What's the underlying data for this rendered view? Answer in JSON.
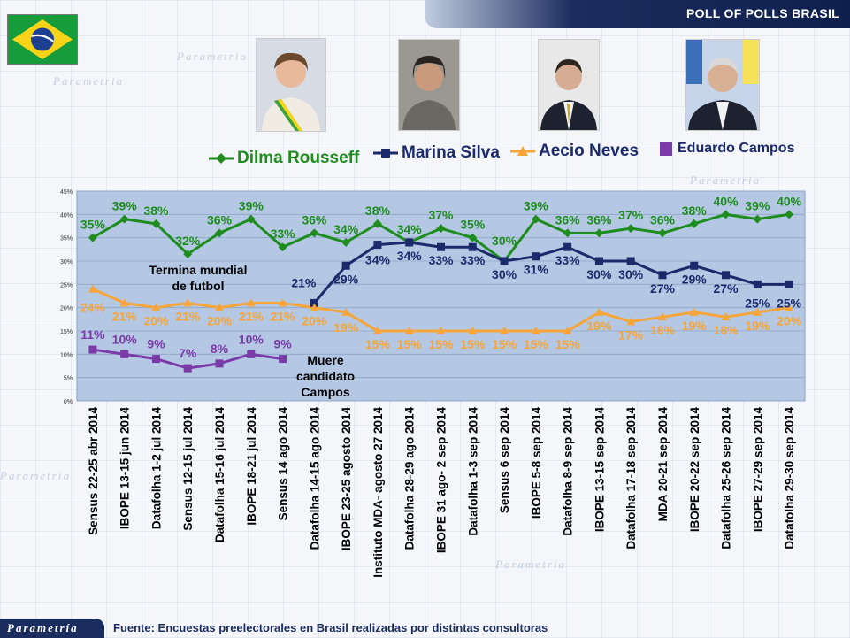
{
  "header": {
    "title": "POLL OF POLLS BRASIL"
  },
  "brand": {
    "logo": "Parametría",
    "flag": "brazil-flag"
  },
  "footer": {
    "source": "Fuente: Encuestas preelectorales en Brasil realizadas por distintas consultoras"
  },
  "colors": {
    "dilma": "#1e8c1e",
    "marina": "#1b2a6b",
    "aecio": "#f5a53a",
    "campos": "#7a3aa8",
    "plot_bg": "#b4c8e4",
    "header": "#1b2c5e"
  },
  "annotations": {
    "world_cup": [
      "Termina mundial",
      "de futbol"
    ],
    "campos_death": [
      "Muere",
      "candidato",
      "Campos"
    ]
  },
  "chart_data": {
    "type": "line",
    "ylim": [
      0,
      45
    ],
    "yticks": [
      "0%",
      "5%",
      "10%",
      "15%",
      "20%",
      "25%",
      "30%",
      "35%",
      "40%",
      "45%"
    ],
    "categories": [
      "Sensus 22-25 abr 2014",
      "IBOPE 13-15 jun 2014",
      "Datafolha 1-2 jul 2014",
      "Sensus 12-15 jul 2014",
      "Datafolha 15-16 jul 2014",
      "IBOPE 18-21 jul 2014",
      "Sensus 14 ago 2014",
      "Datafolha 14-15 ago 2014",
      "IBOPE 23-25 agosto 2014",
      "Instituto MDA- agosto 27 2014",
      "Datafolha 28-29 ago 2014",
      "IBOPE 31 ago- 2 sep 2014",
      "Datafolha 1-3 sep 2014",
      "Sensus 6 sep 2014",
      "IBOPE 5-8 sep 2014",
      "Datafolha 8-9 sep 2014",
      "IBOPE 13-15 sep 2014",
      "Datafolha 17-18 sep 2014",
      "MDA 20-21 sep 2014",
      "IBOPE 20-22 sep 2014",
      "Datafolha 25-26 sep 2014",
      "IBOPE 27-29 sep 2014",
      "Datafolha 29-30 sep 2014"
    ],
    "series": [
      {
        "name": "Dilma Rousseff",
        "marker": "diamond",
        "values": [
          35,
          39,
          38,
          32,
          36,
          39,
          33,
          36,
          34,
          38,
          34,
          37,
          35,
          30,
          39,
          36,
          36,
          37,
          36,
          38,
          40,
          39,
          40
        ],
        "plot": [
          35,
          39,
          38,
          31.5,
          36,
          39,
          33,
          36,
          34,
          38,
          34,
          37,
          35,
          30,
          39,
          36,
          36,
          37,
          36,
          38,
          40,
          39,
          40
        ],
        "labels": [
          "35%",
          "39%",
          "38%",
          "32%",
          "36%",
          "39%",
          "33%",
          "36%",
          "34%",
          "38%",
          "34%",
          "37%",
          "35%",
          "30%",
          "39%",
          "36%",
          "36%",
          "37%",
          "36%",
          "38%",
          "40%",
          "39%",
          "40%"
        ]
      },
      {
        "name": "Marina Silva",
        "marker": "square",
        "values": [
          null,
          null,
          null,
          null,
          null,
          null,
          null,
          21,
          29,
          34,
          34,
          33,
          33,
          30,
          31,
          33,
          30,
          30,
          27,
          29,
          27,
          25,
          25
        ],
        "plot": [
          null,
          null,
          null,
          null,
          null,
          null,
          null,
          21,
          29,
          33.5,
          34,
          33,
          33,
          30,
          31,
          33,
          30,
          30,
          27,
          29,
          27,
          25,
          25
        ],
        "labels": [
          null,
          null,
          null,
          null,
          null,
          null,
          null,
          "21%",
          "29%",
          "34%",
          "34%",
          "33%",
          "33%",
          "30%",
          "31%",
          "33%",
          "30%",
          "30%",
          "27%",
          "29%",
          "27%",
          "25%",
          "25%"
        ]
      },
      {
        "name": "Aecio Neves",
        "marker": "triangle",
        "values": [
          24,
          21,
          20,
          21,
          20,
          21,
          21,
          20,
          19,
          15,
          15,
          15,
          15,
          15,
          15,
          15,
          19,
          17,
          18,
          19,
          18,
          19,
          20
        ],
        "plot": [
          24,
          21,
          20,
          21,
          20,
          21,
          21,
          20,
          19,
          15,
          15,
          15,
          15,
          15,
          15,
          15,
          19,
          17,
          18,
          19,
          18,
          19,
          20
        ],
        "labels": [
          "24%",
          "21%",
          "20%",
          "21%",
          "20%",
          "21%",
          "21%",
          "20%",
          "19%",
          "15%",
          "15%",
          "15%",
          "15%",
          "15%",
          "15%",
          "15%",
          "19%",
          "17%",
          "18%",
          "19%",
          "18%",
          "19%",
          "20%"
        ]
      },
      {
        "name": "Eduardo Campos",
        "marker": "square",
        "values": [
          11,
          10,
          9,
          7,
          8,
          10,
          9,
          null,
          null,
          null,
          null,
          null,
          null,
          null,
          null,
          null,
          null,
          null,
          null,
          null,
          null,
          null,
          null
        ],
        "plot": [
          11,
          10,
          9,
          7,
          8,
          10,
          9,
          null,
          null,
          null,
          null,
          null,
          null,
          null,
          null,
          null,
          null,
          null,
          null,
          null,
          null,
          null,
          null
        ],
        "labels": [
          "11%",
          "10%",
          "9%",
          "7%",
          "8%",
          "10%",
          "9%",
          null,
          null,
          null,
          null,
          null,
          null,
          null,
          null,
          null,
          null,
          null,
          null,
          null,
          null,
          null,
          null
        ]
      }
    ]
  }
}
